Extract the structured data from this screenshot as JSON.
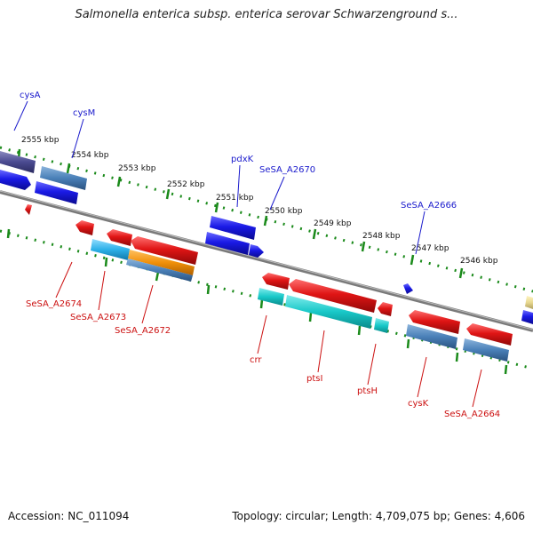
{
  "title": "Salmonella enterica subsp. enterica serovar Schwarzenground s...",
  "footer": {
    "accession": "Accession: NC_011094",
    "topology": "Topology: circular; Length: 4,709,075 bp; Genes: 4,606"
  },
  "colors": {
    "backbone": "#808080",
    "tick_line": "#1a8a1a",
    "label_upper": "#1a1acc",
    "label_lower": "#cc1111",
    "gene_blue": "#1a1ae6",
    "gene_steel": "#4a80b8",
    "gene_purple": "#4a4a90",
    "gene_red": "#e01515",
    "gene_cyan": "#18c8c8",
    "gene_orange": "#f0900a",
    "gene_lightblue": "#2cb0e8",
    "gene_yellow": "#e8d890"
  },
  "kbp_labels": [
    "2555 kbp",
    "2554 kbp",
    "2553 kbp",
    "2552 kbp",
    "2551 kbp",
    "2550 kbp",
    "2549 kbp",
    "2548 kbp",
    "2547 kbp",
    "2546 kbp"
  ],
  "upper_labels": [
    "cysA",
    "cysM",
    "pdxK",
    "SeSA_A2670",
    "SeSA_A2666"
  ],
  "lower_labels": [
    "SeSA_A2674",
    "SeSA_A2673",
    "SeSA_A2672",
    "crr",
    "ptsI",
    "ptsH",
    "cysK",
    "SeSA_A2664"
  ]
}
